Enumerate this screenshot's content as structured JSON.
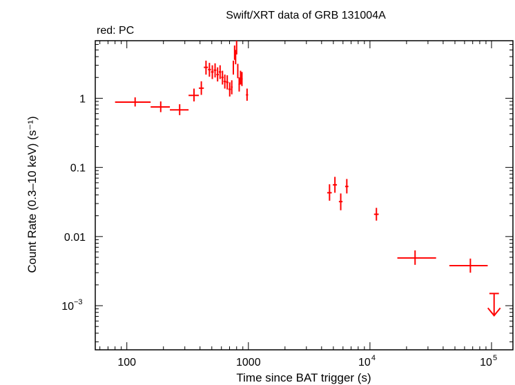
{
  "chart_data": {
    "type": "scatter",
    "title": "Swift/XRT data of GRB 131004A",
    "subtitle": "red: PC",
    "xlabel": "Time since BAT trigger (s)",
    "ylabel": "Count Rate (0.3–10 keV) (s⁻¹)",
    "xscale": "log",
    "yscale": "log",
    "xlim": [
      55,
      150000
    ],
    "ylim": [
      0.00023,
      6.8
    ],
    "x_ticks": [
      {
        "value": 100,
        "label": "100"
      },
      {
        "value": 1000,
        "label": "1000"
      },
      {
        "value": 10000,
        "base": "10",
        "exp": "4"
      },
      {
        "value": 100000,
        "base": "10",
        "exp": "5"
      }
    ],
    "y_ticks": [
      {
        "value": 1,
        "label": "1"
      },
      {
        "value": 0.1,
        "label": "0.1"
      },
      {
        "value": 0.01,
        "label": "0.01"
      },
      {
        "value": 0.001,
        "base": "10",
        "exp": "−3"
      }
    ],
    "grid": false,
    "color": "#ff0000",
    "series": [
      {
        "name": "PC",
        "points": [
          {
            "x": 117,
            "xlo": 80,
            "xhi": 157,
            "y": 0.88,
            "ylo": 0.76,
            "yhi": 1.03
          },
          {
            "x": 190,
            "xlo": 157,
            "xhi": 226,
            "y": 0.75,
            "ylo": 0.63,
            "yhi": 0.9
          },
          {
            "x": 272,
            "xlo": 226,
            "xhi": 322,
            "y": 0.68,
            "ylo": 0.57,
            "yhi": 0.82
          },
          {
            "x": 357,
            "xlo": 322,
            "xhi": 391,
            "y": 1.1,
            "ylo": 0.9,
            "yhi": 1.38
          },
          {
            "x": 410,
            "xlo": 391,
            "xhi": 430,
            "y": 1.4,
            "ylo": 1.12,
            "yhi": 1.76
          },
          {
            "x": 448,
            "xlo": 430,
            "xhi": 465,
            "y": 2.8,
            "ylo": 2.2,
            "yhi": 3.5
          },
          {
            "x": 478,
            "xlo": 465,
            "xhi": 492,
            "y": 2.6,
            "ylo": 2.05,
            "yhi": 3.25
          },
          {
            "x": 505,
            "xlo": 492,
            "xhi": 518,
            "y": 2.4,
            "ylo": 1.9,
            "yhi": 3.0
          },
          {
            "x": 532,
            "xlo": 518,
            "xhi": 545,
            "y": 2.55,
            "ylo": 2.0,
            "yhi": 3.2
          },
          {
            "x": 558,
            "xlo": 545,
            "xhi": 571,
            "y": 2.2,
            "ylo": 1.75,
            "yhi": 2.8
          },
          {
            "x": 585,
            "xlo": 571,
            "xhi": 598,
            "y": 2.4,
            "ylo": 1.9,
            "yhi": 3.0
          },
          {
            "x": 612,
            "xlo": 598,
            "xhi": 625,
            "y": 2.0,
            "ylo": 1.58,
            "yhi": 2.5
          },
          {
            "x": 640,
            "xlo": 625,
            "xhi": 655,
            "y": 1.75,
            "ylo": 1.38,
            "yhi": 2.2
          },
          {
            "x": 670,
            "xlo": 655,
            "xhi": 685,
            "y": 1.7,
            "ylo": 1.34,
            "yhi": 2.15
          },
          {
            "x": 702,
            "xlo": 685,
            "xhi": 718,
            "y": 1.35,
            "ylo": 1.06,
            "yhi": 1.7
          },
          {
            "x": 730,
            "xlo": 718,
            "xhi": 742,
            "y": 1.45,
            "ylo": 1.14,
            "yhi": 1.82
          },
          {
            "x": 752,
            "xlo": 742,
            "xhi": 762,
            "y": 2.8,
            "ylo": 2.2,
            "yhi": 3.5
          },
          {
            "x": 770,
            "xlo": 762,
            "xhi": 778,
            "y": 4.6,
            "ylo": 3.6,
            "yhi": 5.8
          },
          {
            "x": 785,
            "xlo": 778,
            "xhi": 792,
            "y": 4.0,
            "ylo": 3.1,
            "yhi": 5.0
          },
          {
            "x": 800,
            "xlo": 792,
            "xhi": 808,
            "y": 5.4,
            "ylo": 4.3,
            "yhi": 6.8
          },
          {
            "x": 818,
            "xlo": 808,
            "xhi": 828,
            "y": 2.5,
            "ylo": 1.95,
            "yhi": 3.15
          },
          {
            "x": 840,
            "xlo": 828,
            "xhi": 852,
            "y": 1.6,
            "ylo": 1.25,
            "yhi": 2.0
          },
          {
            "x": 862,
            "xlo": 852,
            "xhi": 872,
            "y": 2.0,
            "ylo": 1.58,
            "yhi": 2.5
          },
          {
            "x": 885,
            "xlo": 872,
            "xhi": 898,
            "y": 1.9,
            "ylo": 1.5,
            "yhi": 2.4
          },
          {
            "x": 975,
            "xlo": 955,
            "xhi": 995,
            "y": 1.12,
            "ylo": 0.92,
            "yhi": 1.38
          },
          {
            "x": 4650,
            "xlo": 4450,
            "xhi": 4850,
            "y": 0.043,
            "ylo": 0.033,
            "yhi": 0.057
          },
          {
            "x": 5150,
            "xlo": 4950,
            "xhi": 5350,
            "y": 0.056,
            "ylo": 0.043,
            "yhi": 0.073
          },
          {
            "x": 5750,
            "xlo": 5550,
            "xhi": 5950,
            "y": 0.032,
            "ylo": 0.024,
            "yhi": 0.042
          },
          {
            "x": 6450,
            "xlo": 6250,
            "xhi": 6650,
            "y": 0.053,
            "ylo": 0.042,
            "yhi": 0.068
          },
          {
            "x": 11300,
            "xlo": 10800,
            "xhi": 11800,
            "y": 0.021,
            "ylo": 0.017,
            "yhi": 0.026
          },
          {
            "x": 23500,
            "xlo": 16800,
            "xhi": 35000,
            "y": 0.0049,
            "ylo": 0.0039,
            "yhi": 0.0063
          },
          {
            "x": 67000,
            "xlo": 45000,
            "xhi": 93000,
            "y": 0.0038,
            "ylo": 0.003,
            "yhi": 0.0048
          }
        ],
        "upper_limits": [
          {
            "x": 105000,
            "xlo": 96000,
            "xhi": 115000,
            "y": 0.0015
          }
        ]
      }
    ]
  }
}
